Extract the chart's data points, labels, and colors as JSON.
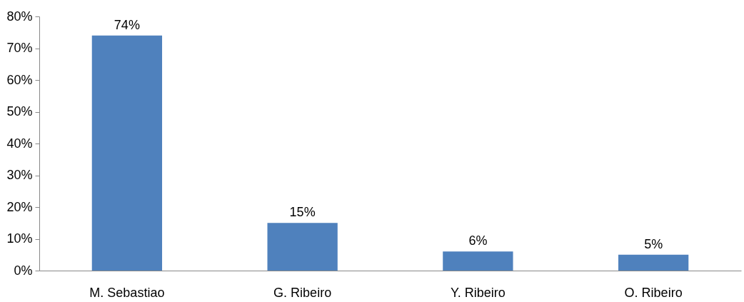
{
  "chart_data": {
    "type": "bar",
    "categories": [
      "M. Sebastiao",
      "G. Ribeiro",
      "Y. Ribeiro",
      "O. Ribeiro"
    ],
    "values": [
      74,
      15,
      6,
      5
    ],
    "color": "#4f81bd",
    "value_labels": [
      "74%",
      "15%",
      "6%",
      "5%"
    ],
    "ylim": [
      0,
      80
    ],
    "yticks": [
      {
        "value": 0,
        "label": "0%"
      },
      {
        "value": 10,
        "label": "10%"
      },
      {
        "value": 20,
        "label": "20%"
      },
      {
        "value": 30,
        "label": "30%"
      },
      {
        "value": 40,
        "label": "40%"
      },
      {
        "value": 50,
        "label": "50%"
      },
      {
        "value": 60,
        "label": "60%"
      },
      {
        "value": 70,
        "label": "70%"
      },
      {
        "value": 80,
        "label": "80%"
      }
    ],
    "grid": false
  }
}
